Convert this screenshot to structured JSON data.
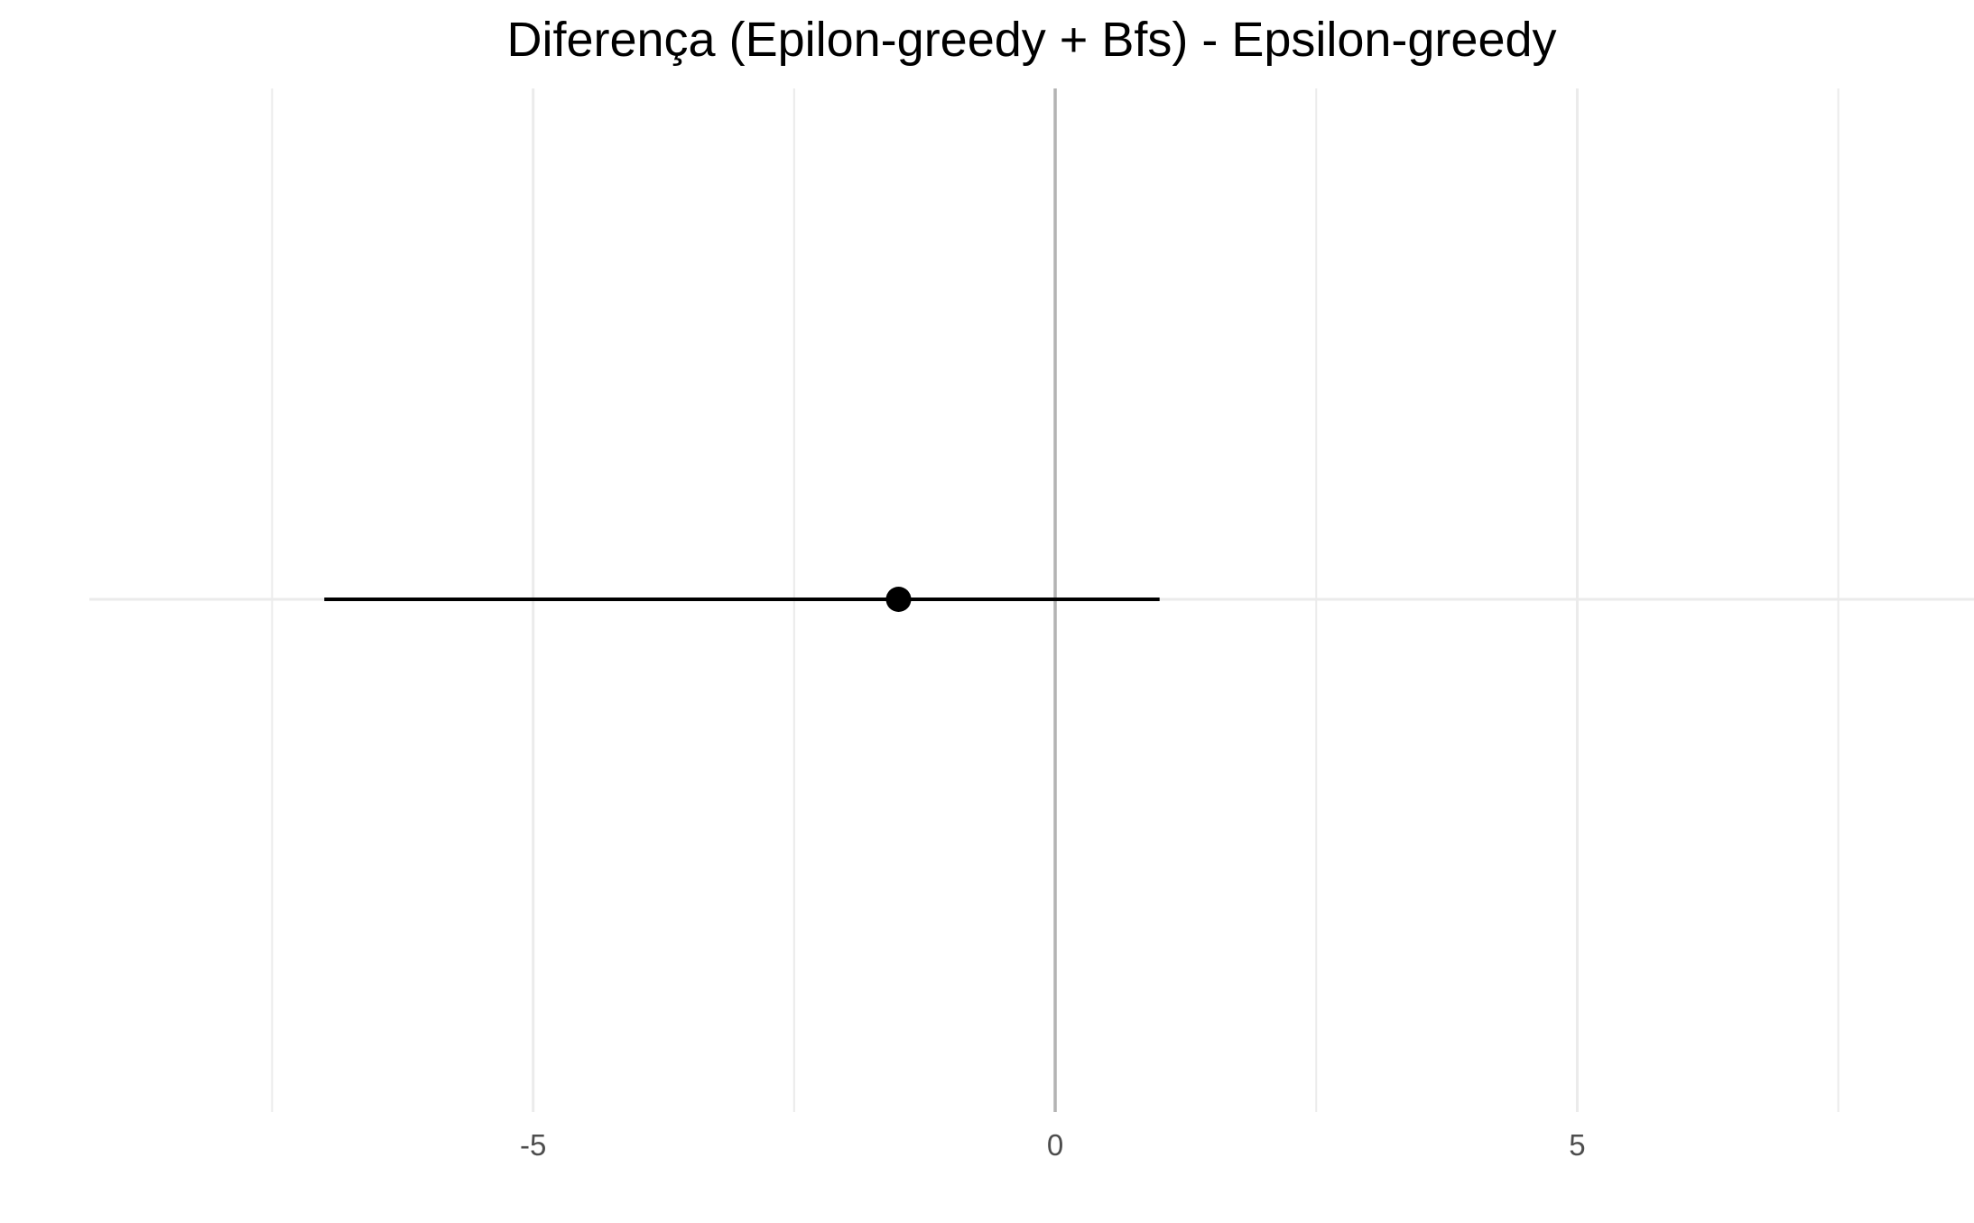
{
  "chart_data": {
    "type": "scatter",
    "title": "Diferença (Epilon-greedy + Bfs) - Epsilon-greedy",
    "xlabel": "",
    "ylabel": "",
    "xlim": [
      -9.25,
      8.8
    ],
    "x_ticks": [
      -5,
      0,
      5
    ],
    "x_tick_labels": [
      "-5",
      "0",
      "5"
    ],
    "x_minor_gridlines": [
      -7.5,
      -2.5,
      2.5,
      7.5
    ],
    "grid": true,
    "points": [
      {
        "x": -1.5,
        "ci_low": -7.0,
        "ci_high": 1.0
      }
    ],
    "reference_line_x": 0,
    "colors": {
      "point": "#000000",
      "errorbar": "#000000",
      "grid": "#ebebeb",
      "reference": "#b3b3b3",
      "tick_text": "#4d4d4d"
    }
  }
}
